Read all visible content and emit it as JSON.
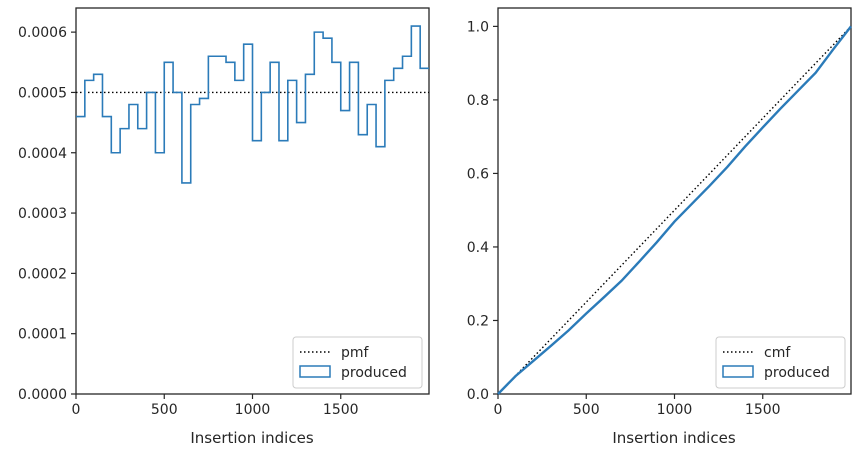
{
  "colors": {
    "produced": "#2b7bb9",
    "reference": "#000000",
    "axes": "#262626",
    "legend_border": "#cccccc"
  },
  "chart_data": [
    {
      "type": "step",
      "xlabel": "Insertion indices",
      "ylabel": "",
      "xlim": [
        0,
        2000
      ],
      "ylim": [
        0,
        0.00064
      ],
      "xticks": [
        0,
        500,
        1000,
        1500
      ],
      "xtick_labels": [
        "0",
        "500",
        "1000",
        "1500"
      ],
      "yticks": [
        0,
        0.0001,
        0.0002,
        0.0003,
        0.0004,
        0.0005,
        0.0006
      ],
      "ytick_labels": [
        "0.0000",
        "0.0001",
        "0.0002",
        "0.0003",
        "0.0004",
        "0.0005",
        "0.0006"
      ],
      "legend_position": "lower right",
      "series": [
        {
          "name": "pmf",
          "style": "dotted",
          "x": [
            0,
            2000
          ],
          "values": [
            0.0005,
            0.0005
          ]
        },
        {
          "name": "produced",
          "style": "step",
          "bin_edges": [
            0,
            50,
            100,
            150,
            200,
            250,
            300,
            350,
            400,
            450,
            500,
            550,
            600,
            650,
            700,
            750,
            800,
            850,
            900,
            950,
            1000,
            1050,
            1100,
            1150,
            1200,
            1250,
            1300,
            1350,
            1400,
            1450,
            1500,
            1550,
            1600,
            1650,
            1700,
            1750,
            1800,
            1850,
            1900,
            1950,
            2000
          ],
          "values": [
            0.00046,
            0.00052,
            0.00053,
            0.00046,
            0.0004,
            0.00044,
            0.00048,
            0.00044,
            0.0005,
            0.0004,
            0.00055,
            0.0005,
            0.00035,
            0.00048,
            0.00049,
            0.00056,
            0.00056,
            0.00055,
            0.00052,
            0.00058,
            0.00042,
            0.0005,
            0.00055,
            0.00042,
            0.00052,
            0.00045,
            0.00053,
            0.0006,
            0.00059,
            0.00055,
            0.00047,
            0.00055,
            0.00043,
            0.00048,
            0.00041,
            0.00052,
            0.00054,
            0.00056,
            0.00061,
            0.00054
          ]
        }
      ]
    },
    {
      "type": "line",
      "xlabel": "Insertion indices",
      "ylabel": "",
      "xlim": [
        0,
        2000
      ],
      "ylim": [
        0,
        1.05
      ],
      "xticks": [
        0,
        500,
        1000,
        1500
      ],
      "xtick_labels": [
        "0",
        "500",
        "1000",
        "1500"
      ],
      "yticks": [
        0,
        0.2,
        0.4,
        0.6,
        0.8,
        1.0
      ],
      "ytick_labels": [
        "0.0",
        "0.2",
        "0.4",
        "0.6",
        "0.8",
        "1.0"
      ],
      "legend_position": "lower right",
      "series": [
        {
          "name": "cmf",
          "style": "dotted",
          "x": [
            0,
            2000
          ],
          "values": [
            0,
            1.0
          ]
        },
        {
          "name": "produced",
          "style": "solid",
          "x": [
            0,
            100,
            200,
            300,
            400,
            500,
            600,
            700,
            800,
            900,
            1000,
            1100,
            1200,
            1300,
            1400,
            1500,
            1600,
            1700,
            1800,
            1900,
            2000
          ],
          "values": [
            0,
            0.049,
            0.09,
            0.131,
            0.173,
            0.219,
            0.263,
            0.308,
            0.36,
            0.413,
            0.469,
            0.518,
            0.567,
            0.618,
            0.673,
            0.725,
            0.776,
            0.825,
            0.874,
            0.938,
            1.0
          ]
        }
      ]
    }
  ]
}
